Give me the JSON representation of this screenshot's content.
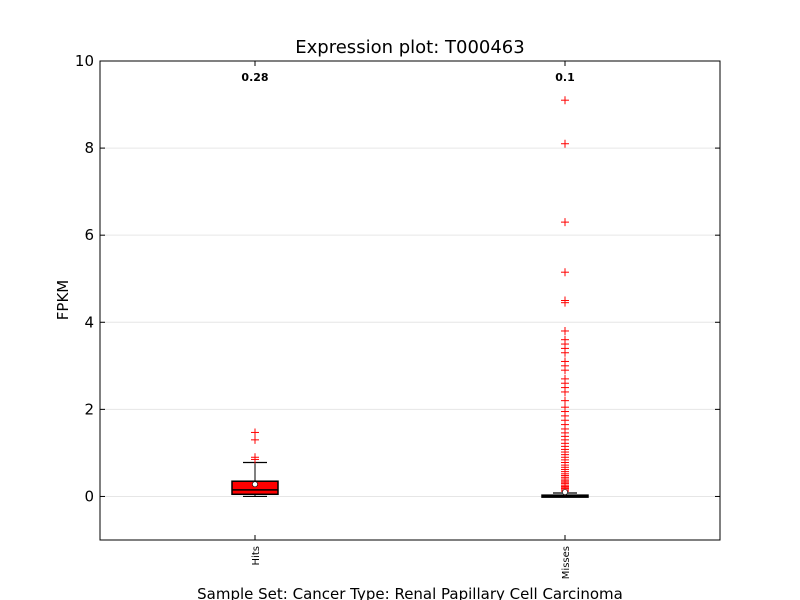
{
  "chart_data": {
    "type": "box",
    "title": "Expression plot: T000463",
    "xlabel": "Sample Set: Cancer Type: Renal Papillary Cell Carcinoma",
    "ylabel": "FPKM",
    "ylim": [
      -1,
      10
    ],
    "yticks": [
      0,
      2,
      4,
      6,
      8,
      10
    ],
    "grid": "horizontal",
    "colors": {
      "box": "#ff0000",
      "outlier": "#ff0000",
      "label_hits": "#ff0000",
      "label_misses": "#3060d0"
    },
    "categories": [
      "Hits",
      "Misses"
    ],
    "boxes": [
      {
        "name": "Hits",
        "label": "0.28",
        "whisker_low": 0.0,
        "q1": 0.05,
        "median": 0.15,
        "q3": 0.35,
        "whisker_high": 0.78,
        "mean": 0.28,
        "outliers": [
          0.85,
          0.9,
          1.3,
          1.47
        ]
      },
      {
        "name": "Misses",
        "label": "0.1",
        "whisker_low": 0.0,
        "q1": 0.0,
        "median": 0.01,
        "q3": 0.03,
        "whisker_high": 0.08,
        "mean": 0.1,
        "outliers": [
          0.12,
          0.15,
          0.18,
          0.2,
          0.23,
          0.26,
          0.3,
          0.33,
          0.36,
          0.4,
          0.44,
          0.48,
          0.52,
          0.57,
          0.62,
          0.67,
          0.72,
          0.78,
          0.84,
          0.9,
          0.96,
          1.02,
          1.08,
          1.15,
          1.22,
          1.3,
          1.38,
          1.46,
          1.55,
          1.65,
          1.75,
          1.85,
          1.95,
          2.05,
          2.2,
          2.4,
          2.5,
          2.6,
          2.7,
          2.9,
          3.0,
          3.1,
          3.3,
          3.4,
          3.5,
          3.6,
          3.8,
          4.45,
          4.5,
          5.15,
          6.3,
          8.1,
          9.1
        ]
      }
    ]
  }
}
